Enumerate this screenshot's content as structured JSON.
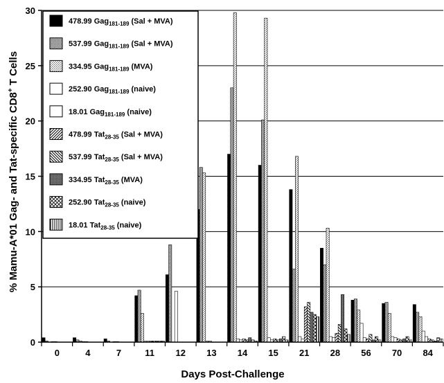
{
  "chart_data": {
    "type": "bar",
    "xlabel": "Days Post-Challenge",
    "ylabel": "% Mamu-A*01 Gag- and Tat-specific CD8",
    "ylabel_sup": "+",
    "ylabel_suffix": " T Cells",
    "ylim": [
      0,
      30
    ],
    "yticks": [
      "0",
      "5",
      "10",
      "15",
      "20",
      "25",
      "30"
    ],
    "grid": "horizontal",
    "legend_placement": "top-left",
    "categories": [
      "0",
      "4",
      "7",
      "11",
      "12",
      "13",
      "14",
      "15",
      "21",
      "28",
      "56",
      "70",
      "84"
    ],
    "series": [
      {
        "animal": "478.99",
        "peptide": "Gag",
        "range": "181-189",
        "group": "(Sal + MVA)",
        "pattern": "black",
        "values": [
          0.4,
          0.4,
          0.3,
          4.2,
          6.1,
          12.0,
          17.0,
          16.0,
          13.8,
          8.5,
          3.8,
          3.5,
          3.4
        ]
      },
      {
        "animal": "537.99",
        "peptide": "Gag",
        "range": "181-189",
        "group": "(Sal + MVA)",
        "pattern": "fine-dots",
        "values": [
          0.1,
          0.2,
          0.1,
          4.7,
          8.8,
          15.8,
          23.0,
          20.1,
          6.6,
          7.0,
          3.9,
          3.6,
          2.7
        ]
      },
      {
        "animal": "334.95",
        "peptide": "Gag",
        "range": "181-189",
        "group": "(MVA)",
        "pattern": "gray-dots",
        "values": [
          0.0,
          0.1,
          0.0,
          2.6,
          0.0,
          15.3,
          29.8,
          29.3,
          16.8,
          10.3,
          2.9,
          2.6,
          2.3
        ]
      },
      {
        "animal": "252.90",
        "peptide": "Gag",
        "range": "181-189",
        "group": "(naive)",
        "pattern": "white",
        "values": [
          0.05,
          0.05,
          0.05,
          0.1,
          4.6,
          0.1,
          0.3,
          0.4,
          0.5,
          0.5,
          1.7,
          0.5,
          1.0
        ]
      },
      {
        "animal": "18.01",
        "peptide": "Gag",
        "range": "181-189",
        "group": "(naive)",
        "pattern": "white-alt",
        "values": [
          0.05,
          0.05,
          0.05,
          0.1,
          0.0,
          0.1,
          0.2,
          0.2,
          0.3,
          0.4,
          0.4,
          0.4,
          0.5
        ]
      },
      {
        "animal": "478.99",
        "peptide": "Tat",
        "range": "28-35",
        "group": "(Sal + MVA)",
        "pattern": "diag-right",
        "values": [
          0.0,
          0.0,
          0.0,
          0.1,
          0.0,
          0.0,
          0.3,
          0.3,
          3.2,
          0.8,
          0.3,
          0.3,
          0.3
        ]
      },
      {
        "animal": "537.99",
        "peptide": "Tat",
        "range": "28-35",
        "group": "(Sal + MVA)",
        "pattern": "diag-left",
        "values": [
          0.0,
          0.0,
          0.0,
          0.1,
          0.0,
          0.0,
          0.2,
          0.2,
          3.6,
          1.6,
          0.7,
          0.2,
          0.2
        ]
      },
      {
        "animal": "334.95",
        "peptide": "Tat",
        "range": "28-35",
        "group": "(MVA)",
        "pattern": "dense",
        "values": [
          0.0,
          0.0,
          0.0,
          0.1,
          0.0,
          0.0,
          0.4,
          0.3,
          2.7,
          4.3,
          0.2,
          0.3,
          0.1
        ]
      },
      {
        "animal": "252.90",
        "peptide": "Tat",
        "range": "28-35",
        "group": "(naive)",
        "pattern": "crosshatch",
        "values": [
          0.0,
          0.0,
          0.0,
          0.1,
          0.0,
          0.0,
          0.2,
          0.5,
          2.5,
          1.2,
          0.5,
          0.5,
          0.4
        ]
      },
      {
        "animal": "18.01",
        "peptide": "Tat",
        "range": "28-35",
        "group": "(naive)",
        "pattern": "vertical",
        "values": [
          0.0,
          0.0,
          0.0,
          0.1,
          0.0,
          0.0,
          0.1,
          0.2,
          2.3,
          0.7,
          0.2,
          0.2,
          0.3
        ]
      }
    ]
  }
}
